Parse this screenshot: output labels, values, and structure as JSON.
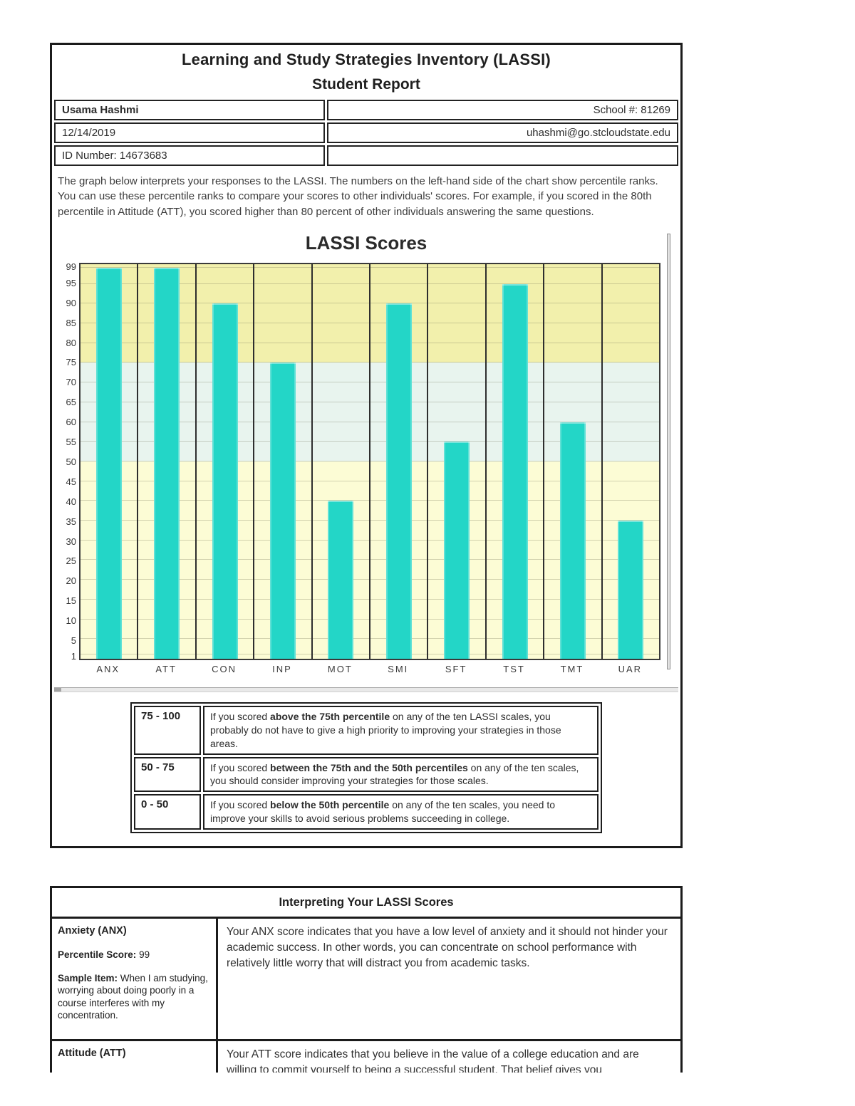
{
  "report": {
    "title": "Learning and Study Strategies Inventory (LASSI)",
    "subtitle": "Student Report",
    "student_name": "Usama Hashmi",
    "school_number": "School #: 81269",
    "date": "12/14/2019",
    "email": "uhashmi@go.stcloudstate.edu",
    "id_number": "ID Number: 14673683",
    "intro": "The graph below interprets your responses to the LASSI. The numbers on the left-hand side of the chart show percentile ranks. You can use these percentile ranks to compare your scores to other individuals' scores. For example, if you scored in the 80th percentile in Attitude (ATT), you scored higher than 80 percent of other individuals answering the same questions."
  },
  "chart_data": {
    "type": "bar",
    "title": "LASSI Scores",
    "categories": [
      "ANX",
      "ATT",
      "CON",
      "INP",
      "MOT",
      "SMI",
      "SFT",
      "TST",
      "TMT",
      "UAR"
    ],
    "values": [
      99,
      99,
      90,
      75,
      40,
      90,
      55,
      95,
      60,
      35
    ],
    "xlabel": "",
    "ylabel": "",
    "ylim": [
      0,
      100
    ],
    "yticks": [
      1,
      5,
      10,
      15,
      20,
      25,
      30,
      35,
      40,
      45,
      50,
      55,
      60,
      65,
      70,
      75,
      80,
      85,
      90,
      95,
      99
    ],
    "grid": true,
    "legend_position": "none",
    "bar_color": "#23d6c7",
    "bands": [
      {
        "range": [
          75,
          100
        ],
        "color": "#f2f0ac",
        "label": "75 - 100"
      },
      {
        "range": [
          50,
          75
        ],
        "color": "#e8f4ee",
        "label": "50 - 75"
      },
      {
        "range": [
          0,
          50
        ],
        "color": "#fcfcd5",
        "label": "0 - 50"
      }
    ]
  },
  "score_key": {
    "rows": [
      {
        "range": "75 - 100",
        "pre": "If you scored ",
        "bold": "above the 75th percentile",
        "post": " on any of the ten LASSI scales, you probably do not have to give a high priority to improving your strategies in those areas."
      },
      {
        "range": "50 - 75",
        "pre": "If you scored ",
        "bold": "between the 75th and the 50th percentiles",
        "post": " on any of the ten scales, you should consider improving your strategies for those scales."
      },
      {
        "range": "0 - 50",
        "pre": "If you scored ",
        "bold": "below the 50th percentile",
        "post": " on any of the ten scales, you need to improve your skills to avoid serious problems succeeding in college."
      }
    ]
  },
  "interpretation": {
    "heading": "Interpreting Your LASSI Scores",
    "rows": [
      {
        "scale": "Anxiety (ANX)",
        "percentile_label": "Percentile Score:",
        "percentile": " 99",
        "sample_label": "Sample Item:",
        "sample": " When I am studying, worrying about doing poorly in a course interferes with my concentration.",
        "text": "Your ANX score indicates that you have a low level of anxiety and it should not hinder your academic success. In other words, you can concentrate on school performance with relatively little worry that will distract you from academic tasks."
      },
      {
        "scale": "Attitude (ATT)",
        "text": "Your ATT score indicates that you believe in the value of a college education and are willing to commit yourself to being a successful student. That belief gives you"
      }
    ]
  }
}
